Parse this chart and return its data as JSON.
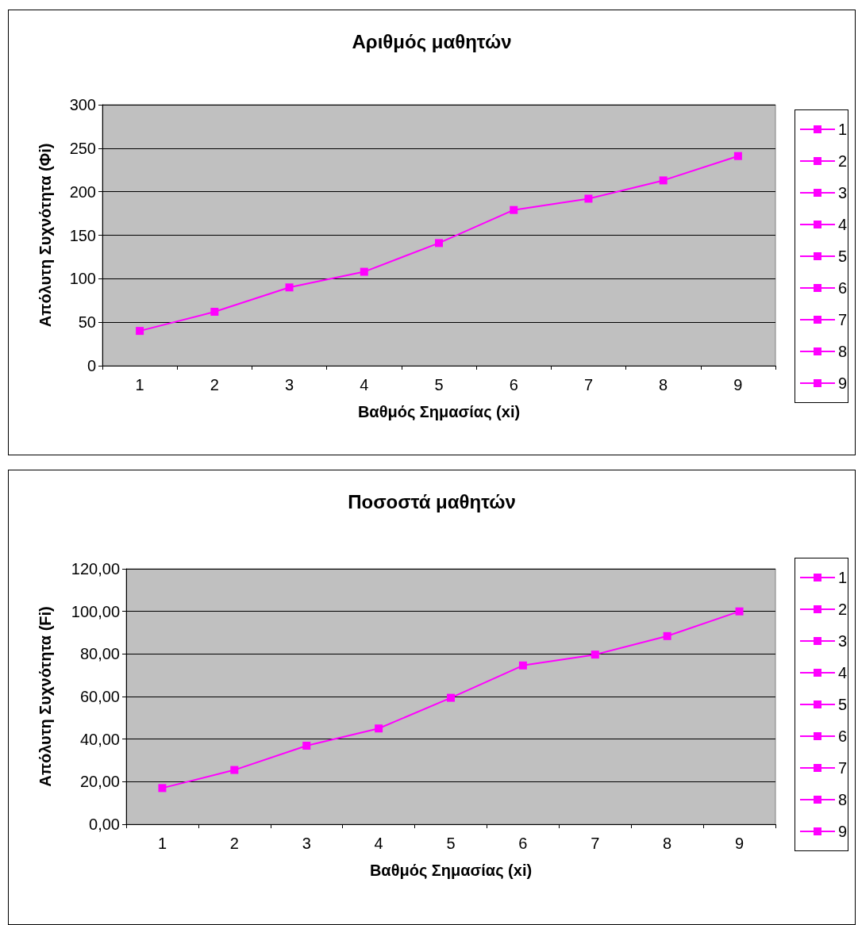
{
  "chart_data": [
    {
      "type": "line",
      "title": "Αριθμός μαθητών",
      "xlabel": "Βαθμός Σημασίας (xi)",
      "ylabel": "Απόλυτη Συχνότητα (Φi)",
      "categories": [
        "1",
        "2",
        "3",
        "4",
        "5",
        "6",
        "7",
        "8",
        "9"
      ],
      "series": [
        {
          "color": "#ff00ff",
          "values": [
            40,
            62,
            90,
            108,
            141,
            179,
            192,
            213,
            241
          ]
        }
      ],
      "ylim": [
        0,
        300
      ],
      "yticks": [
        0,
        50,
        100,
        150,
        200,
        250,
        300
      ],
      "grid": "y",
      "marker": "square",
      "line_style": "solid"
    },
    {
      "type": "line",
      "title": "Ποσοστά μαθητών",
      "xlabel": "Βαθμός Σημασίας (xi)",
      "ylabel": "Απόλυτη Συχνότητα (Fi)",
      "categories": [
        "1",
        "2",
        "3",
        "4",
        "5",
        "6",
        "7",
        "8",
        "9"
      ],
      "series": [
        {
          "color": "#ff00ff",
          "values": [
            17.0,
            25.5,
            36.9,
            45.0,
            59.4,
            74.6,
            79.7,
            88.4,
            100.0
          ]
        }
      ],
      "ylim": [
        0,
        120
      ],
      "yticks": [
        {
          "value": 0,
          "label": "0,00"
        },
        {
          "value": 20,
          "label": "20,00"
        },
        {
          "value": 40,
          "label": "40,00"
        },
        {
          "value": 60,
          "label": "60,00"
        },
        {
          "value": 80,
          "label": "80,00"
        },
        {
          "value": 100,
          "label": "100,00"
        },
        {
          "value": 120,
          "label": "120,00"
        }
      ],
      "grid": "y",
      "marker": "square",
      "line_style": "solid"
    }
  ]
}
